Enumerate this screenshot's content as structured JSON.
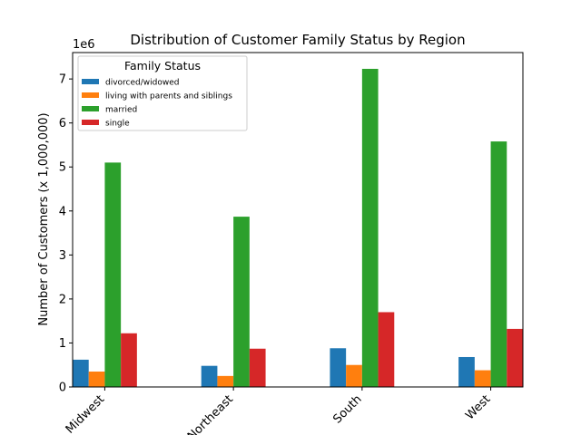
{
  "chart_data": {
    "type": "bar",
    "title": "Distribution of Customer Family Status by Region",
    "xlabel": "",
    "ylabel": "Number of Customers (x 1,000,000)",
    "offset_label": "1e6",
    "categories": [
      "Midwest",
      "Northeast",
      "South",
      "West"
    ],
    "series": [
      {
        "name": "divorced/widowed",
        "color": "#1f77b4",
        "values": [
          620000,
          480000,
          880000,
          680000
        ]
      },
      {
        "name": "living with parents and siblings",
        "color": "#ff7f0e",
        "values": [
          350000,
          250000,
          500000,
          380000
        ]
      },
      {
        "name": "married",
        "color": "#2ca02c",
        "values": [
          5100000,
          3870000,
          7230000,
          5580000
        ]
      },
      {
        "name": "single",
        "color": "#d62728",
        "values": [
          1220000,
          870000,
          1700000,
          1320000
        ]
      }
    ],
    "ylim": [
      0,
      7600000
    ],
    "yticks": [
      0,
      1000000,
      2000000,
      3000000,
      4000000,
      5000000,
      6000000,
      7000000
    ],
    "ytick_labels": [
      "0",
      "1",
      "2",
      "3",
      "4",
      "5",
      "6",
      "7"
    ],
    "legend": {
      "title": "Family Status",
      "placement": "top-left"
    },
    "grid": false
  }
}
